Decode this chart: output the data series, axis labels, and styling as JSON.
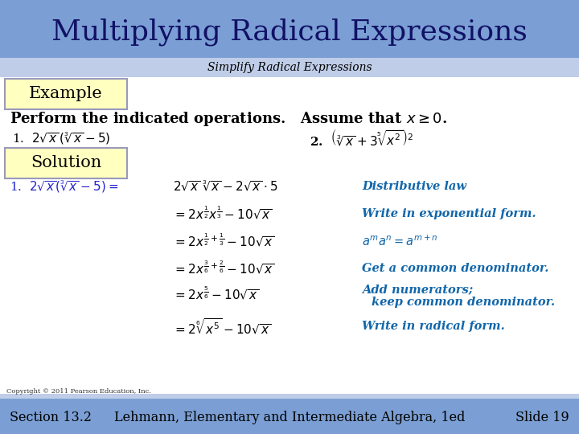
{
  "title": "Multiplying Radical Expressions",
  "subtitle": "Simplify Radical Expressions",
  "title_bg": "#7B9FD4",
  "subtitle_bg": "#C0CDE8",
  "main_bg": "#FFFFFF",
  "footer_bg": "#7B9FD4",
  "footer_strip_bg": "#C0CDE8",
  "example_box_bg": "#FFFFC0",
  "example_box_border": "#9999BB",
  "solution_box_bg": "#FFFFC0",
  "solution_box_border": "#9999BB",
  "title_color": "#111166",
  "black": "#000000",
  "blue_math": "#2222CC",
  "teal_note": "#1166AA",
  "footer_text_color": "#000000",
  "footer_section": "Section 13.2",
  "footer_book": "Lehmann, Elementary and Intermediate Algebra, 1ed",
  "footer_slide": "Slide 19",
  "copyright": "Copyright © 2011 Pearson Education, Inc."
}
